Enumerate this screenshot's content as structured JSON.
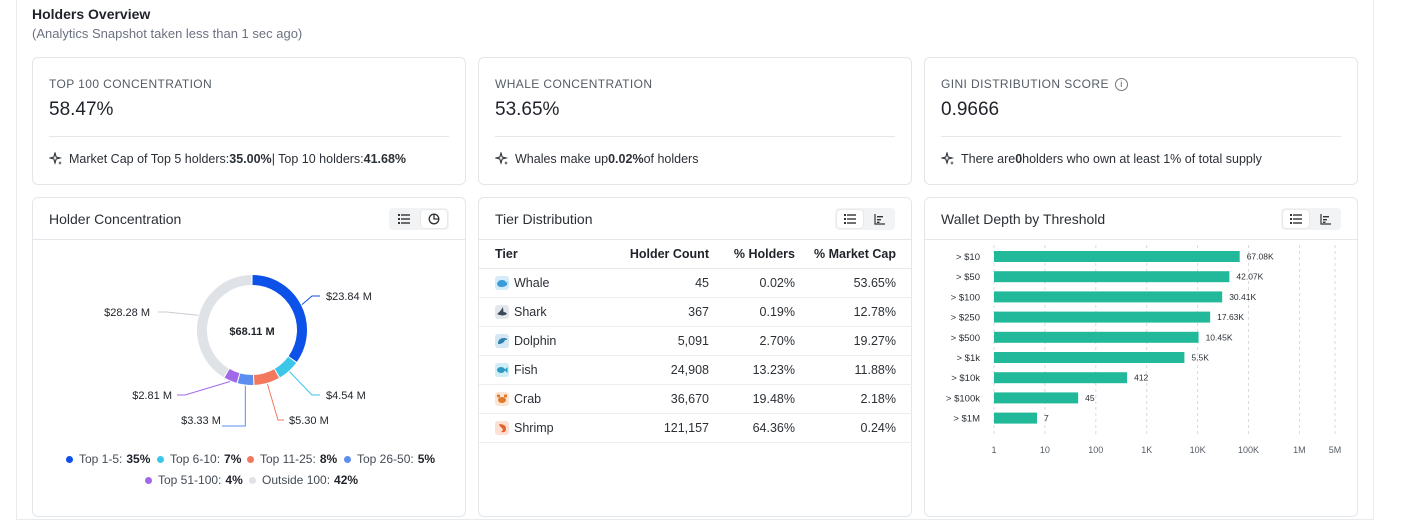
{
  "header": {
    "title": "Holders Overview",
    "subtitle": "(Analytics Snapshot taken less than 1 sec ago)"
  },
  "stats": [
    {
      "label": "TOP 100 CONCENTRATION",
      "value": "58.47%",
      "foot": [
        "Market Cap of Top 5 holders: ",
        "35.00%",
        " | Top 10 holders: ",
        "41.68%"
      ]
    },
    {
      "label": "WHALE CONCENTRATION",
      "value": "53.65%",
      "foot": [
        "Whales make up ",
        "0.02%",
        " of holders"
      ]
    },
    {
      "label": "GINI DISTRIBUTION SCORE",
      "value": "0.9666",
      "foot": [
        "There are ",
        "0",
        " holders who own at least 1% of total supply"
      ],
      "info_icon": "info-icon"
    }
  ],
  "holder_concentration": {
    "title": "Holder Concentration",
    "center": "$68.11 M",
    "callouts": [
      "$23.84 M",
      "$4.54 M",
      "$5.30 M",
      "$3.33 M",
      "$2.81 M",
      "$28.28 M"
    ],
    "legend": [
      {
        "label": "Top 1-5:",
        "value": "35%",
        "color": "#0d52e8"
      },
      {
        "label": "Top 6-10:",
        "value": "7%",
        "color": "#3bc6ea"
      },
      {
        "label": "Top 11-25:",
        "value": "8%",
        "color": "#f2795e"
      },
      {
        "label": "Top 26-50:",
        "value": "5%",
        "color": "#5b8ef0"
      },
      {
        "label": "Top 51-100:",
        "value": "4%",
        "color": "#a069e8"
      },
      {
        "label": "Outside 100:",
        "value": "42%",
        "color": "#dfe3e8"
      }
    ]
  },
  "tier_distribution": {
    "title": "Tier Distribution",
    "headers": [
      "Tier",
      "Holder Count",
      "% Holders",
      "% Market Cap"
    ],
    "rows": [
      {
        "tier": "Whale",
        "count": "45",
        "holders": "0.02%",
        "cap": "53.65%",
        "icon": "whale-icon",
        "color": "#3b9bd8"
      },
      {
        "tier": "Shark",
        "count": "367",
        "holders": "0.19%",
        "cap": "12.78%",
        "icon": "shark-icon",
        "color": "#3c4a58"
      },
      {
        "tier": "Dolphin",
        "count": "5,091",
        "holders": "2.70%",
        "cap": "19.27%",
        "icon": "dolphin-icon",
        "color": "#2f7fb0"
      },
      {
        "tier": "Fish",
        "count": "24,908",
        "holders": "13.23%",
        "cap": "11.88%",
        "icon": "fish-icon",
        "color": "#2c9cc2"
      },
      {
        "tier": "Crab",
        "count": "36,670",
        "holders": "19.48%",
        "cap": "2.18%",
        "icon": "crab-icon",
        "color": "#e07a2e"
      },
      {
        "tier": "Shrimp",
        "count": "121,157",
        "holders": "64.36%",
        "cap": "0.24%",
        "icon": "shrimp-icon",
        "color": "#e5622c"
      }
    ]
  },
  "wallet_depth": {
    "title": "Wallet Depth by Threshold"
  },
  "chart_data": [
    {
      "type": "pie",
      "categories": [
        "Top 1-5",
        "Top 6-10",
        "Top 11-25",
        "Top 26-50",
        "Top 51-100",
        "Outside 100"
      ],
      "values": [
        23.84,
        4.54,
        5.3,
        3.33,
        2.81,
        28.28
      ],
      "value_labels": [
        "$23.84 M",
        "$4.54 M",
        "$5.30 M",
        "$3.33 M",
        "$2.81 M",
        "$28.28 M"
      ],
      "percents": [
        35,
        7,
        8,
        5,
        4,
        42
      ],
      "total_label": "$68.11 M",
      "colors": [
        "#0d52e8",
        "#3bc6ea",
        "#f2795e",
        "#5b8ef0",
        "#a069e8",
        "#dfe3e8"
      ]
    },
    {
      "type": "bar",
      "orientation": "horizontal",
      "scale": "log",
      "categories": [
        "> $10",
        "> $50",
        "> $100",
        "> $250",
        "> $500",
        "> $1k",
        "> $10k",
        "> $100k",
        "> $1M"
      ],
      "values": [
        67080,
        42070,
        30410,
        17630,
        10450,
        5500,
        412,
        45,
        7
      ],
      "value_labels": [
        "67.08K",
        "42.07K",
        "30.41K",
        "17.63K",
        "10.45K",
        "5.5K",
        "412",
        "45",
        "7"
      ],
      "x_ticks": [
        1,
        10,
        100,
        1000,
        10000,
        100000,
        1000000,
        5000000
      ],
      "x_tick_labels": [
        "1",
        "10",
        "100",
        "1K",
        "10K",
        "100K",
        "1M",
        "5M"
      ],
      "xlim": [
        1,
        5000000
      ],
      "grid": true,
      "color": "#22b99a"
    }
  ]
}
